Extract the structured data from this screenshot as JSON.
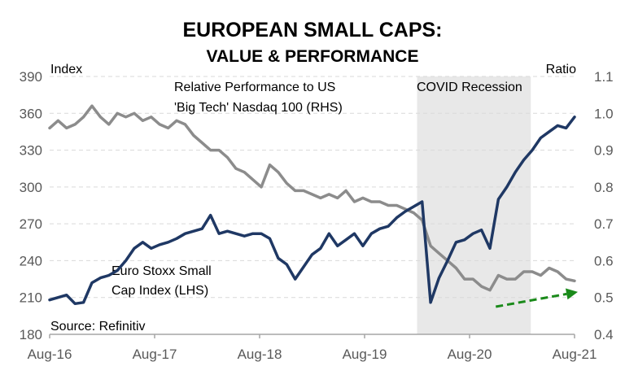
{
  "chart_data": {
    "type": "line",
    "title": "EUROPEAN SMALL CAPS:",
    "subtitle": "VALUE & PERFORMANCE",
    "ylabel_left": "Index",
    "ylabel_right": "Ratio",
    "source": "Source: Refinitiv",
    "ylim_left": [
      180,
      390
    ],
    "yticks_left": [
      "180",
      "210",
      "240",
      "270",
      "300",
      "330",
      "360",
      "390"
    ],
    "ylim_right": [
      0.4,
      1.1
    ],
    "yticks_right": [
      "0.4",
      "0.5",
      "0.6",
      "0.7",
      "0.8",
      "0.9",
      "1.0",
      "1.1"
    ],
    "x_start": "2016-08",
    "x_end": "2021-08",
    "xticks": [
      "Aug-16",
      "Aug-17",
      "Aug-18",
      "Aug-19",
      "Aug-20",
      "Aug-21"
    ],
    "grid": true,
    "shaded_region": {
      "label": "COVID Recession",
      "start": "2020-02",
      "end": "2021-03",
      "color": "#e8e8e8"
    },
    "trend_arrow": {
      "color": "#1a8a1a",
      "from": [
        "2020-11",
        0.475
      ],
      "to": [
        "2021-08",
        0.515
      ],
      "style": "dashed"
    },
    "series": [
      {
        "name": "Euro Stoxx Small Cap Index (LHS)",
        "label_lines": [
          "Euro Stoxx Small",
          "Cap Index (LHS)"
        ],
        "axis": "left",
        "color": "#1f3864",
        "values": [
          208,
          210,
          212,
          205,
          206,
          222,
          226,
          228,
          232,
          240,
          250,
          255,
          250,
          253,
          255,
          258,
          262,
          264,
          266,
          277,
          262,
          264,
          262,
          260,
          262,
          262,
          258,
          242,
          237,
          225,
          235,
          245,
          250,
          262,
          252,
          257,
          262,
          252,
          262,
          266,
          268,
          275,
          280,
          284,
          288,
          206,
          226,
          240,
          255,
          257,
          262,
          265,
          250,
          290,
          300,
          312,
          322,
          330,
          340,
          345,
          350,
          348,
          357
        ]
      },
      {
        "name": "Relative Performance to US 'Big Tech' Nasdaq 100 (RHS)",
        "label_lines": [
          "Relative Performance to US",
          "'Big Tech' Nasdaq 100 (RHS)"
        ],
        "axis": "right",
        "color": "#8c8c8c",
        "values": [
          0.96,
          0.98,
          0.96,
          0.97,
          0.99,
          1.02,
          0.99,
          0.97,
          1.0,
          0.99,
          1.0,
          0.98,
          0.99,
          0.97,
          0.96,
          0.98,
          0.97,
          0.94,
          0.92,
          0.9,
          0.9,
          0.88,
          0.85,
          0.84,
          0.82,
          0.8,
          0.86,
          0.84,
          0.81,
          0.79,
          0.79,
          0.78,
          0.77,
          0.78,
          0.77,
          0.79,
          0.76,
          0.77,
          0.76,
          0.76,
          0.75,
          0.75,
          0.74,
          0.73,
          0.71,
          0.64,
          0.62,
          0.6,
          0.58,
          0.55,
          0.55,
          0.53,
          0.52,
          0.56,
          0.55,
          0.55,
          0.57,
          0.57,
          0.56,
          0.58,
          0.57,
          0.55,
          0.545
        ]
      }
    ]
  }
}
